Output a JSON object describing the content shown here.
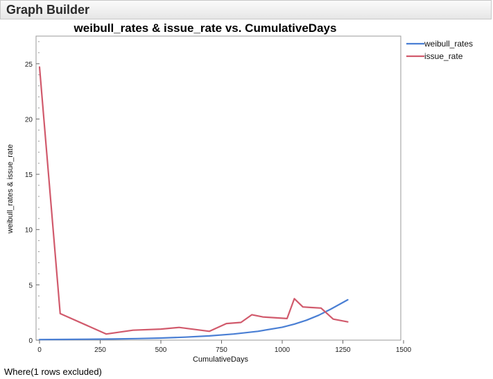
{
  "window": {
    "title": "Graph Builder"
  },
  "footer": {
    "text": "Where(1 rows excluded)"
  },
  "chart_data": {
    "type": "line",
    "title": "weibull_rates & issue_rate vs. CumulativeDays",
    "xlabel": "CumulativeDays",
    "ylabel": "weibull_rates & issue_rate",
    "xlim": [
      0,
      1500
    ],
    "ylim": [
      0,
      27.5
    ],
    "xticks": [
      0,
      250,
      500,
      750,
      1000,
      1250,
      1500
    ],
    "yticks": [
      0,
      5,
      10,
      15,
      20,
      25
    ],
    "grid": false,
    "legend_position": "right",
    "series": [
      {
        "name": "weibull_rates",
        "color": "#4a7fd4",
        "x": [
          0,
          100,
          200,
          300,
          400,
          500,
          600,
          700,
          800,
          900,
          1000,
          1050,
          1100,
          1150,
          1200,
          1270
        ],
        "y": [
          0.05,
          0.06,
          0.08,
          0.1,
          0.14,
          0.19,
          0.27,
          0.38,
          0.55,
          0.8,
          1.17,
          1.45,
          1.8,
          2.25,
          2.8,
          3.65
        ]
      },
      {
        "name": "issue_rate",
        "color": "#d15a6c",
        "x": [
          0,
          85,
          275,
          385,
          500,
          575,
          700,
          770,
          830,
          875,
          920,
          1020,
          1050,
          1085,
          1120,
          1160,
          1210,
          1270
        ],
        "y": [
          24.7,
          2.4,
          0.55,
          0.9,
          1.0,
          1.15,
          0.8,
          1.5,
          1.6,
          2.3,
          2.1,
          1.95,
          3.75,
          3.0,
          2.95,
          2.9,
          1.9,
          1.65
        ]
      }
    ]
  }
}
